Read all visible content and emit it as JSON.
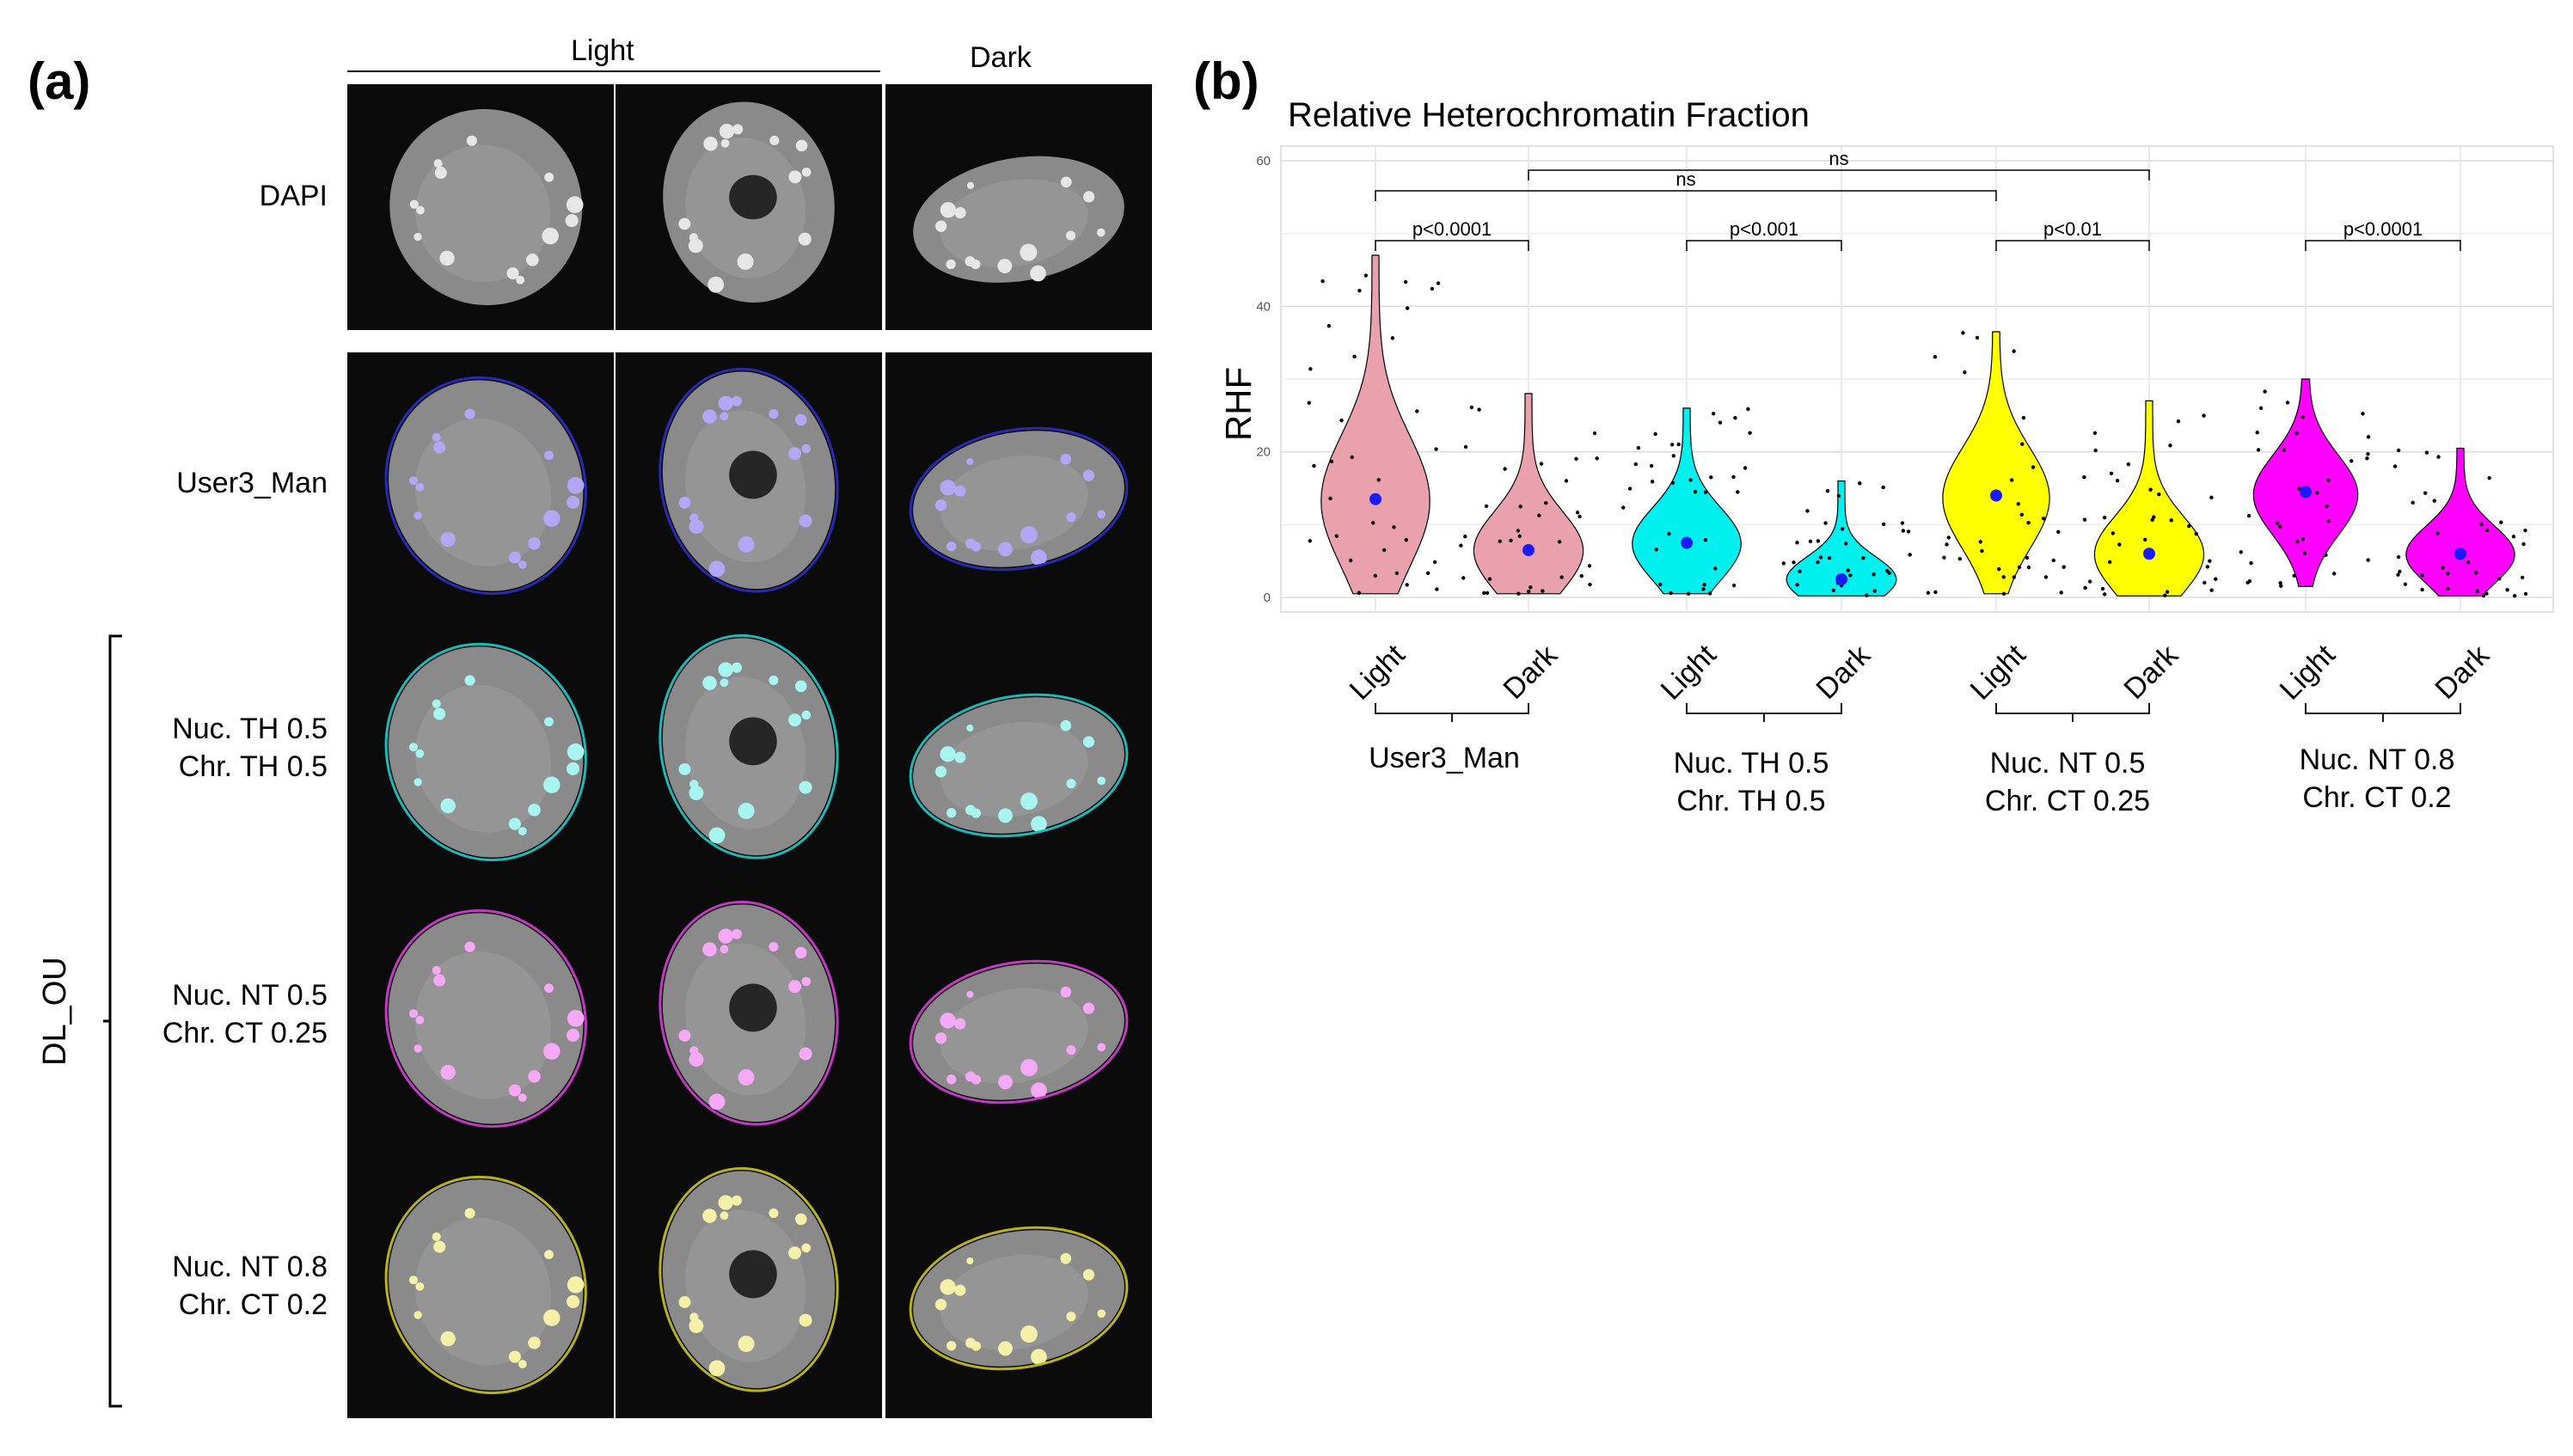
{
  "panel_a": {
    "label": "(a)",
    "col_headers": {
      "light": "Light",
      "dark": "Dark"
    },
    "row_labels": [
      {
        "line1": "DAPI",
        "line2": ""
      },
      {
        "line1": "User3_Man",
        "line2": ""
      },
      {
        "line1": "Nuc. TH 0.5",
        "line2": "Chr. TH 0.5"
      },
      {
        "line1": "Nuc. NT 0.5",
        "line2": "Chr. CT 0.25"
      },
      {
        "line1": "Nuc. NT 0.8",
        "line2": "Chr. CT 0.2"
      }
    ],
    "group_label": "DL_OU",
    "outline_colors": [
      "none",
      "#2a2ab0",
      "#1fb8b8",
      "#c23ac2",
      "#b8b21f"
    ],
    "spot_colors": [
      "#e6e6e6",
      "#b3a7f5",
      "#a8f5f0",
      "#f5a8f5",
      "#f5f0a8"
    ]
  },
  "panel_b": {
    "label": "(b)",
    "group_labels": [
      {
        "line1": "User3_Man",
        "line2": ""
      },
      {
        "line1": "Nuc. TH 0.5",
        "line2": "Chr. TH 0.5"
      },
      {
        "line1": "Nuc. NT 0.5",
        "line2": "Chr. CT 0.25"
      },
      {
        "line1": "Nuc. NT 0.8",
        "line2": "Chr. CT 0.2"
      }
    ]
  },
  "chart_data": {
    "type": "violin",
    "title": "Relative Heterochromatin Fraction",
    "xlabel": "",
    "ylabel": "RHF",
    "ylim": [
      -2,
      62
    ],
    "yticks": [
      0,
      20,
      40,
      60
    ],
    "categories": [
      "Light",
      "Dark",
      "Light",
      "Dark",
      "Light",
      "Dark",
      "Light",
      "Dark"
    ],
    "fill_colors": [
      "#e8a1ad",
      "#e8a1ad",
      "#00f0f0",
      "#00f0f0",
      "#ffff00",
      "#ffff00",
      "#ff00ff",
      "#ff00ff"
    ],
    "medians": [
      13.5,
      6.5,
      7.5,
      2.5,
      14,
      6,
      14.5,
      6
    ],
    "ranges": [
      [
        0.5,
        47
      ],
      [
        0.5,
        28
      ],
      [
        0.5,
        26
      ],
      [
        0.2,
        16
      ],
      [
        0.5,
        36.5
      ],
      [
        0.2,
        27
      ],
      [
        1.5,
        30
      ],
      [
        0.2,
        20.5
      ]
    ],
    "comparisons": [
      {
        "from": 0,
        "to": 1,
        "level": 0,
        "label": "p<0.0001"
      },
      {
        "from": 2,
        "to": 3,
        "level": 0,
        "label": "p<0.001"
      },
      {
        "from": 4,
        "to": 5,
        "level": 0,
        "label": "p<0.01"
      },
      {
        "from": 6,
        "to": 7,
        "level": 0,
        "label": "p<0.0001"
      },
      {
        "from": 0,
        "to": 4,
        "level": 1,
        "label": "ns"
      },
      {
        "from": 1,
        "to": 5,
        "level": 2,
        "label": "ns"
      }
    ]
  }
}
